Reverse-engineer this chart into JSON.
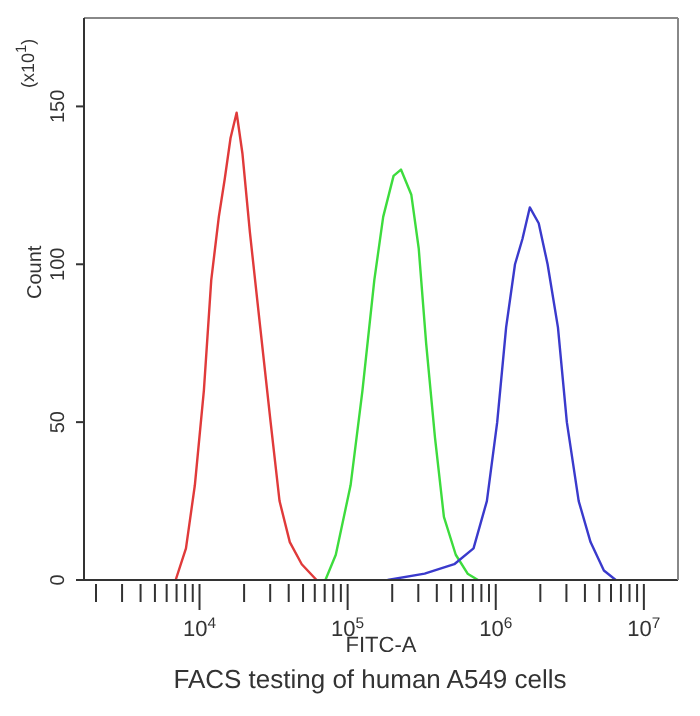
{
  "chart_data": {
    "type": "line",
    "ylabel": "Count",
    "xlabel": "FITC-A",
    "log": "x",
    "annotations": [
      "(x10$^{1}$)",
      "FACS testing of human A549 cells"
    ],
    "xlim": [
      1660,
      17000000
    ],
    "xticks": [
      {
        "value": 2000,
        "label": null
      },
      {
        "value": 3000,
        "label": null
      },
      {
        "value": 4000,
        "label": null
      },
      {
        "value": 5000,
        "label": null
      },
      {
        "value": 6000,
        "label": null
      },
      {
        "value": 7000,
        "label": null
      },
      {
        "value": 8000,
        "label": null
      },
      {
        "value": 9000,
        "label": null
      },
      {
        "value": 10000,
        "label": "10$^{4}$"
      },
      {
        "value": 20000,
        "label": null
      },
      {
        "value": 30000,
        "label": null
      },
      {
        "value": 40000,
        "label": null
      },
      {
        "value": 50000,
        "label": null
      },
      {
        "value": 60000,
        "label": null
      },
      {
        "value": 70000,
        "label": null
      },
      {
        "value": 80000,
        "label": null
      },
      {
        "value": 90000,
        "label": null
      },
      {
        "value": 100000,
        "label": "10$^{5}$"
      },
      {
        "value": 200000,
        "label": null
      },
      {
        "value": 300000,
        "label": null
      },
      {
        "value": 400000,
        "label": null
      },
      {
        "value": 500000,
        "label": null
      },
      {
        "value": 600000,
        "label": null
      },
      {
        "value": 700000,
        "label": null
      },
      {
        "value": 800000,
        "label": null
      },
      {
        "value": 900000,
        "label": null
      },
      {
        "value": 1000000,
        "label": "10$^{6}$"
      },
      {
        "value": 2000000,
        "label": null
      },
      {
        "value": 3000000,
        "label": null
      },
      {
        "value": 4000000,
        "label": null
      },
      {
        "value": 5000000,
        "label": null
      },
      {
        "value": 6000000,
        "label": null
      },
      {
        "value": 7000000,
        "label": null
      },
      {
        "value": 8000000,
        "label": null
      },
      {
        "value": 9000000,
        "label": null
      },
      {
        "value": 10000000,
        "label": "10$^{7}$"
      }
    ],
    "ylim": [
      0,
      178
    ],
    "yticks": [
      0,
      50,
      100,
      150
    ],
    "legend": false,
    "marker": "none",
    "line_style": "solid",
    "series": [
      {
        "color": "#e03a3a",
        "x": [
          6900,
          8100,
          9300,
          10700,
          12000,
          13500,
          14800,
          16200,
          17800,
          19500,
          21900,
          25700,
          30200,
          34700,
          40700,
          49000,
          61700
        ],
        "values": [
          0,
          10,
          30,
          60,
          95,
          115,
          127,
          140,
          148,
          135,
          110,
          80,
          50,
          25,
          12,
          5,
          0
        ]
      },
      {
        "color": "#3ddc3d",
        "x": [
          70800,
          83200,
          104700,
          125900,
          151400,
          173800,
          204200,
          229100,
          269200,
          302000,
          338800,
          389000,
          446700,
          537000,
          645700,
          758600
        ],
        "values": [
          0,
          8,
          30,
          60,
          95,
          115,
          128,
          130,
          122,
          105,
          75,
          45,
          20,
          8,
          2,
          0
        ]
      },
      {
        "color": "#3a3acc",
        "x": [
          186200,
          331100,
          524800,
          707900,
          871000,
          1023000,
          1175000,
          1349000,
          1514000,
          1698000,
          1950000,
          2239000,
          2630000,
          3020000,
          3631000,
          4365000,
          5370000,
          6457000
        ],
        "values": [
          0,
          2,
          5,
          10,
          25,
          50,
          80,
          100,
          108,
          118,
          113,
          100,
          80,
          50,
          25,
          12,
          3,
          0
        ]
      }
    ]
  }
}
